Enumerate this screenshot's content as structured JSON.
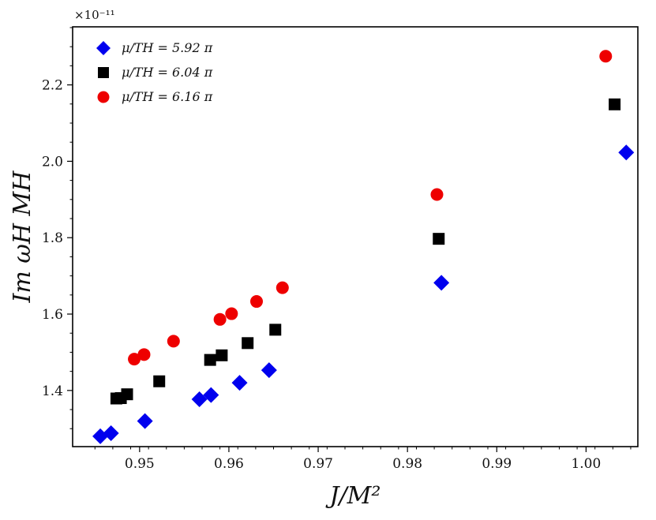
{
  "chart_data": {
    "type": "scatter",
    "title": "",
    "xlabel": "J/M²",
    "ylabel": "Im ωH MH",
    "y_multiplier": "×10⁻¹¹",
    "xlim": [
      0.9425,
      1.0058
    ],
    "ylim": [
      1.253,
      2.352
    ],
    "x_ticks": [
      0.95,
      0.96,
      0.97,
      0.98,
      0.99,
      1.0
    ],
    "x_tick_labels": [
      "0.95",
      "0.96",
      "0.97",
      "0.98",
      "0.99",
      "1.00"
    ],
    "y_ticks": [
      1.4,
      1.6,
      1.8,
      2.0,
      2.2
    ],
    "y_tick_labels": [
      "1.4",
      "1.6",
      "1.8",
      "2.0",
      "2.2"
    ],
    "grid": false,
    "legend_position": "top-left",
    "series": [
      {
        "name": "μ/TH = 5.92 π",
        "marker": "diamond",
        "color": "#0000ee",
        "x": [
          0.9456,
          0.9468,
          0.9506,
          0.9567,
          0.958,
          0.9612,
          0.9645,
          0.9838,
          1.0045
        ],
        "y": [
          1.28,
          1.288,
          1.32,
          1.377,
          1.388,
          1.42,
          1.453,
          1.682,
          2.023
        ]
      },
      {
        "name": "μ/TH = 6.04 π",
        "marker": "square",
        "color": "#000000",
        "x": [
          0.9474,
          0.9479,
          0.9486,
          0.9522,
          0.9579,
          0.9592,
          0.9621,
          0.9652,
          0.9835,
          1.0032
        ],
        "y": [
          1.379,
          1.38,
          1.39,
          1.424,
          1.48,
          1.492,
          1.524,
          1.559,
          1.797,
          2.149
        ]
      },
      {
        "name": "μ/TH = 6.16 π",
        "marker": "circle",
        "color": "#ee0000",
        "x": [
          0.9494,
          0.9505,
          0.9538,
          0.959,
          0.9603,
          0.9631,
          0.966,
          0.9833,
          1.0022
        ],
        "y": [
          1.482,
          1.494,
          1.529,
          1.586,
          1.601,
          1.633,
          1.669,
          1.913,
          2.275
        ]
      }
    ]
  }
}
